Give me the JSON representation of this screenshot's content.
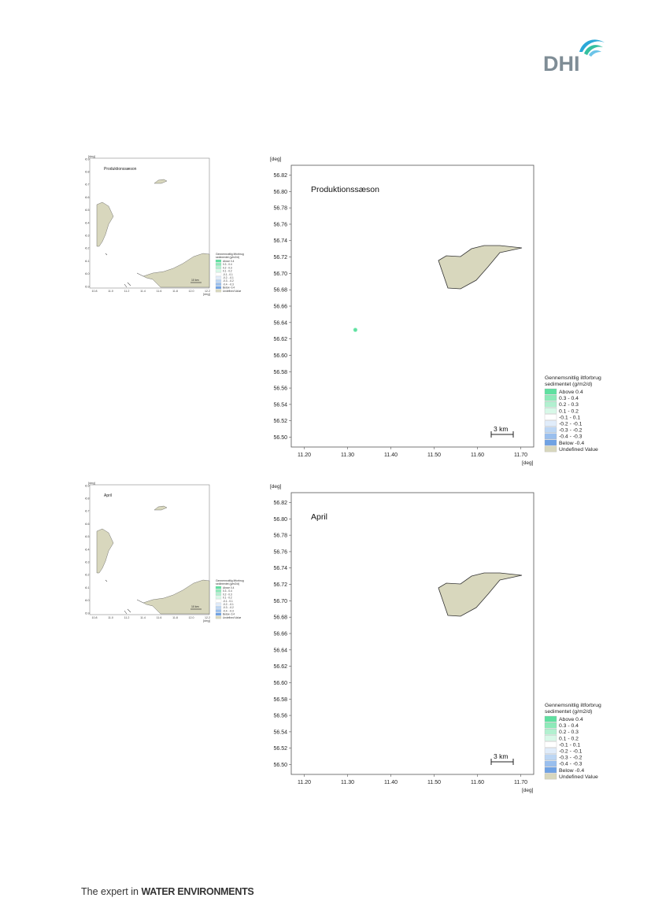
{
  "brand": {
    "logo_text": "DHI",
    "tagline_prefix": "The expert in",
    "tagline_bold": "WATER ENVIRONMENTS"
  },
  "units": {
    "x": "[deg]",
    "y": "[deg]"
  },
  "axes": {
    "y_ticks": [
      "56.82",
      "56.80",
      "56.78",
      "56.76",
      "56.74",
      "56.72",
      "56.70",
      "56.68",
      "56.66",
      "56.64",
      "56.62",
      "56.60",
      "56.58",
      "56.56",
      "56.54",
      "56.52",
      "56.50"
    ],
    "x_ticks": [
      "11.20",
      "11.30",
      "11.40",
      "11.50",
      "11.60",
      "11.70"
    ],
    "x_range": [
      11.17,
      11.73
    ],
    "y_range": [
      56.488,
      56.832
    ]
  },
  "legend": {
    "title_line1": "Gennemsnitlig iltforbrug",
    "title_line2": "sedimentet (g/m2/d)",
    "items": [
      {
        "label": "Above  0.4",
        "color": "#5fe0a0"
      },
      {
        "label": " 0.3 -  0.4",
        "color": "#8deab9"
      },
      {
        "label": " 0.2 -  0.3",
        "color": "#b2f0d0"
      },
      {
        "label": " 0.1 -  0.2",
        "color": "#d8f8e8"
      },
      {
        "label": "-0.1 -  0.1",
        "color": "#ffffff"
      },
      {
        "label": "-0.2 - -0.1",
        "color": "#e0ecfa"
      },
      {
        "label": "-0.3 - -0.2",
        "color": "#bcd6f4"
      },
      {
        "label": "-0.4 - -0.3",
        "color": "#99bfee"
      },
      {
        "label": "Below -0.4",
        "color": "#6fa2e4"
      },
      {
        "label": "Undefined Value",
        "color": "#d8d7bd"
      }
    ]
  },
  "land_color": "#d8d7bd",
  "scale_bar_label": "3 km",
  "overview": {
    "y_ticks": [
      "56.9",
      "56.8",
      "56.7",
      "56.6",
      "56.5",
      "56.4",
      "56.3",
      "56.2",
      "56.1",
      "56.0",
      "55.9"
    ],
    "x_ticks": [
      "10.8",
      "11.0",
      "11.2",
      "11.4",
      "11.6",
      "11.8",
      "12.0",
      "12.2"
    ],
    "scale_label": "10 km"
  },
  "panels": [
    {
      "title": "Produktionssæson",
      "spots": [
        {
          "x": 11.318,
          "y": 56.631,
          "color": "#5fe0a0"
        }
      ]
    },
    {
      "title": "April",
      "spots": []
    }
  ],
  "chart_data": [
    {
      "type": "heatmap",
      "title": "Produktionssæson",
      "xlabel": "[deg]",
      "ylabel": "[deg]",
      "xlim": [
        11.17,
        11.73
      ],
      "ylim": [
        56.488,
        56.832
      ],
      "legend_title": "Gennemsnitlig iltforbrug sedimentet (g/m2/d)",
      "points": [
        {
          "x": 11.318,
          "y": 56.631,
          "class": "Above  0.4"
        }
      ]
    },
    {
      "type": "heatmap",
      "title": "April",
      "xlabel": "[deg]",
      "ylabel": "[deg]",
      "xlim": [
        11.17,
        11.73
      ],
      "ylim": [
        56.488,
        56.832
      ],
      "legend_title": "Gennemsnitlig iltforbrug sedimentet (g/m2/d)",
      "points": []
    }
  ]
}
